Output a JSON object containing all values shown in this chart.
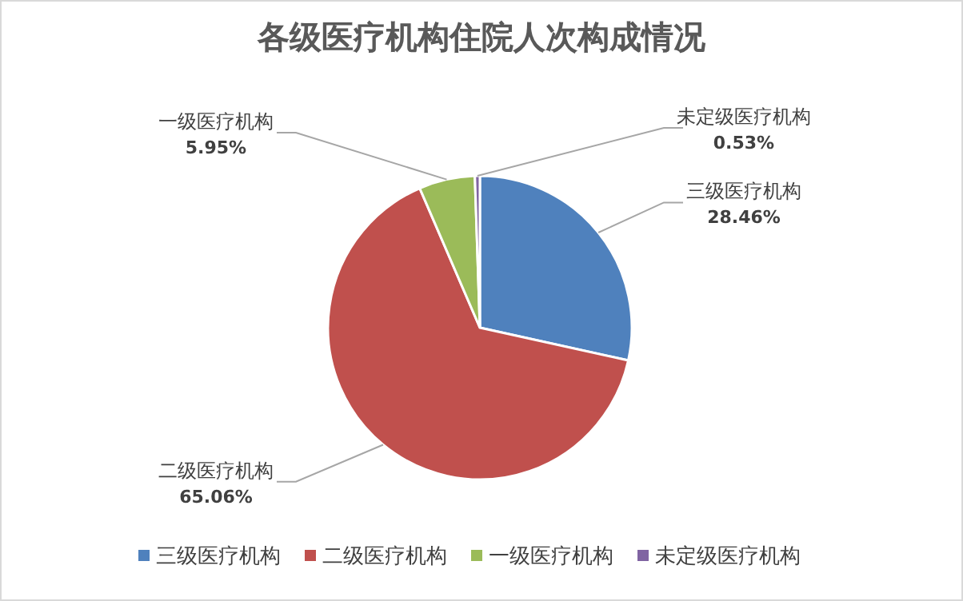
{
  "chart_data": {
    "type": "pie",
    "title": "各级医疗机构住院人次构成情况",
    "categories": [
      "三级医疗机构",
      "二级医疗机构",
      "一级医疗机构",
      "未定级医疗机构"
    ],
    "values": [
      28.46,
      65.06,
      5.95,
      0.53
    ],
    "colors": [
      "#4f81bd",
      "#c0504d",
      "#9bbb59",
      "#8064a2"
    ],
    "value_labels": [
      "28.46%",
      "65.06%",
      "5.95%",
      "0.53%"
    ],
    "legend": "bottom"
  }
}
